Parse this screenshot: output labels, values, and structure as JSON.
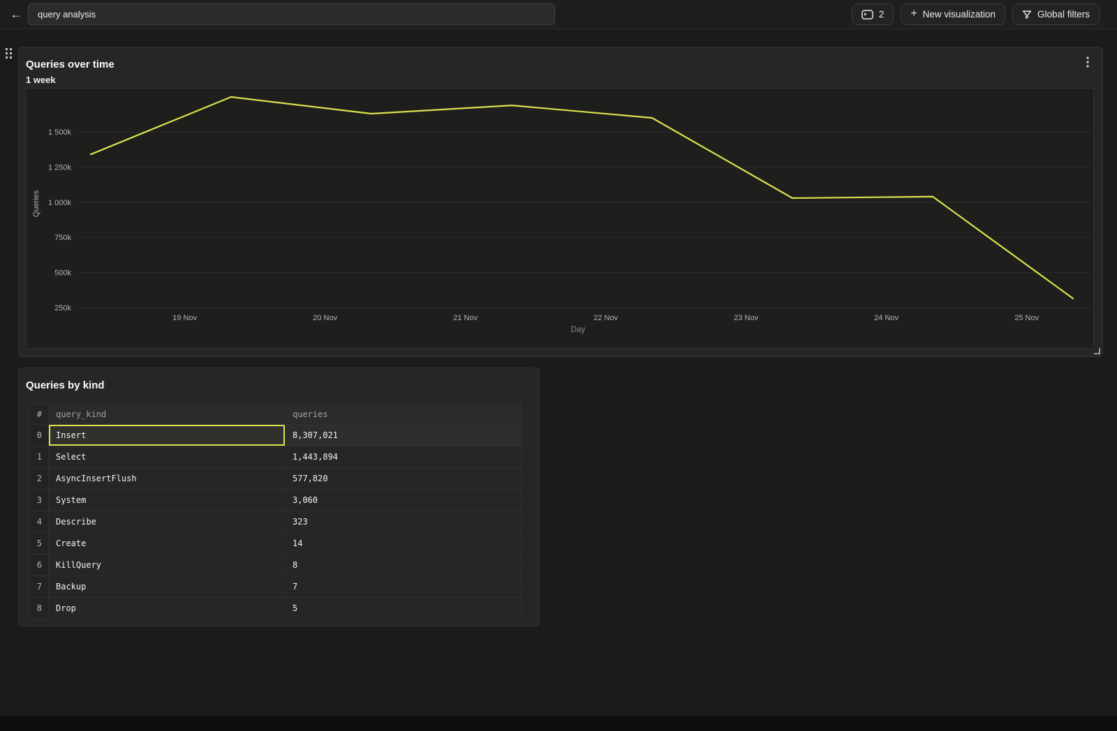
{
  "topbar": {
    "back_label": "←",
    "title_input": {
      "value": "query analysis"
    },
    "panels_button": {
      "count": "2"
    },
    "new_viz_button": {
      "plus": "+",
      "label": "New visualization"
    },
    "global_filters_button": {
      "label": "Global filters"
    }
  },
  "chart_panel": {
    "title": "Queries over time",
    "subtitle": "1 week"
  },
  "chart_data": {
    "type": "line",
    "title": "Queries over time",
    "subtitle": "1 week",
    "xlabel": "Day",
    "ylabel": "Queries",
    "grid": "horizontal",
    "legend": "none",
    "line_color": "#dce14d",
    "ylim": [
      0,
      1810000
    ],
    "x_ticks": [
      {
        "day": 19,
        "label": "19 Nov"
      },
      {
        "day": 20,
        "label": "20 Nov"
      },
      {
        "day": 21,
        "label": "21 Nov"
      },
      {
        "day": 22,
        "label": "22 Nov"
      },
      {
        "day": 23,
        "label": "23 Nov"
      },
      {
        "day": 24,
        "label": "24 Nov"
      },
      {
        "day": 25,
        "label": "25 Nov"
      }
    ],
    "y_ticks": [
      {
        "value": 250000,
        "label": "250k"
      },
      {
        "value": 500000,
        "label": "500k"
      },
      {
        "value": 750000,
        "label": "750k"
      },
      {
        "value": 1000000,
        "label": "1 000k"
      },
      {
        "value": 1250000,
        "label": "1 250k"
      },
      {
        "value": 1500000,
        "label": "1 500k"
      }
    ],
    "series": [
      {
        "name": "Queries",
        "points": [
          {
            "day": 18.33,
            "value": 1340000
          },
          {
            "day": 19.33,
            "value": 1748000
          },
          {
            "day": 20.33,
            "value": 1629000
          },
          {
            "day": 21.33,
            "value": 1688000
          },
          {
            "day": 22.33,
            "value": 1599000
          },
          {
            "day": 23.33,
            "value": 1029000
          },
          {
            "day": 24.33,
            "value": 1039000
          },
          {
            "day": 25.33,
            "value": 315000
          }
        ]
      }
    ]
  },
  "table_panel": {
    "title": "Queries by kind",
    "columns": [
      "#",
      "query_kind",
      "queries"
    ],
    "rows": [
      {
        "index": "0",
        "query_kind": "Insert",
        "queries": "8,307,021",
        "selected": true
      },
      {
        "index": "1",
        "query_kind": "Select",
        "queries": "1,443,894",
        "selected": false
      },
      {
        "index": "2",
        "query_kind": "AsyncInsertFlush",
        "queries": "577,820",
        "selected": false
      },
      {
        "index": "3",
        "query_kind": "System",
        "queries": "3,060",
        "selected": false
      },
      {
        "index": "4",
        "query_kind": "Describe",
        "queries": "323",
        "selected": false
      },
      {
        "index": "5",
        "query_kind": "Create",
        "queries": "14",
        "selected": false
      },
      {
        "index": "6",
        "query_kind": "KillQuery",
        "queries": "8",
        "selected": false
      },
      {
        "index": "7",
        "query_kind": "Backup",
        "queries": "7",
        "selected": false
      },
      {
        "index": "8",
        "query_kind": "Drop",
        "queries": "5",
        "selected": false
      }
    ]
  },
  "colors": {
    "accent_line": "#dce14d",
    "selection_border": "#d9e04f",
    "panel_background": "#262624",
    "page_background": "#1b1b19"
  }
}
